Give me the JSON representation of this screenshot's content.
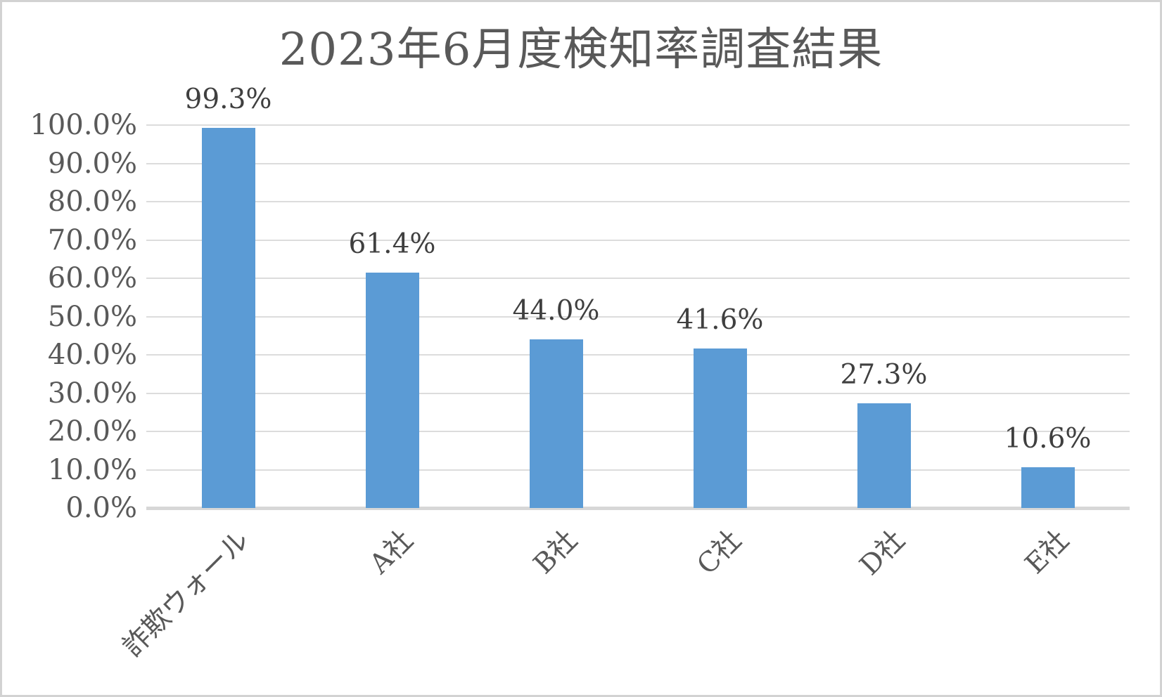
{
  "chart_data": {
    "type": "bar",
    "title": "2023年6月度検知率調査結果",
    "categories": [
      "詐欺ウォール",
      "A社",
      "B社",
      "C社",
      "D社",
      "E社"
    ],
    "values": [
      99.3,
      61.4,
      44.0,
      41.6,
      27.3,
      10.6
    ],
    "value_labels": [
      "99.3%",
      "61.4%",
      "44.0%",
      "41.6%",
      "27.3%",
      "10.6%"
    ],
    "y_tick_labels": [
      "0.0%",
      "10.0%",
      "20.0%",
      "30.0%",
      "40.0%",
      "50.0%",
      "60.0%",
      "70.0%",
      "80.0%",
      "90.0%",
      "100.0%"
    ],
    "ylim": [
      0,
      100
    ],
    "y_step": 10,
    "grid": true,
    "legend": "none",
    "xlabel": "",
    "ylabel": "",
    "colors": {
      "bar": "#5B9BD5",
      "gridline": "#dcdcdc",
      "axis_line": "#d7d7d7",
      "title_text": "#595959",
      "tick_text": "#595959",
      "value_label_text": "#3f3f3f"
    }
  }
}
